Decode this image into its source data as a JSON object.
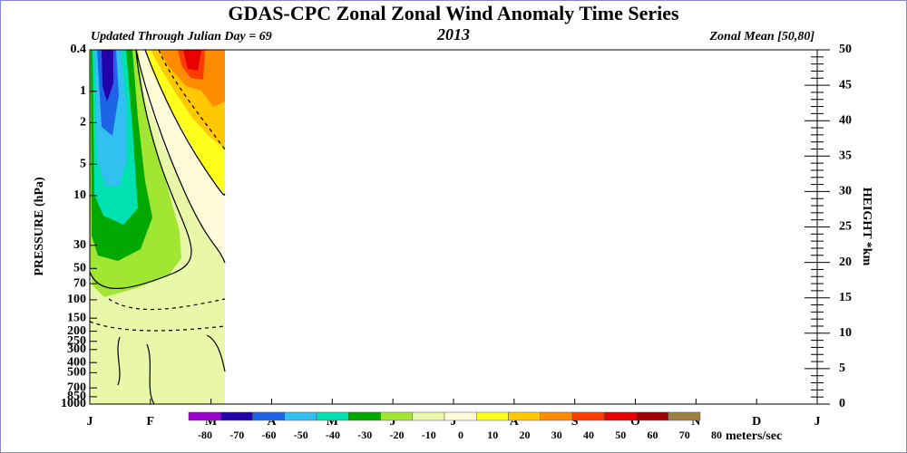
{
  "chart_data": {
    "type": "contour",
    "title": "GDAS-CPC Zonal Zonal Wind Anomaly Time Series",
    "subtitle_left": "Updated Through Julian Day =  69",
    "subtitle_center": "2013",
    "subtitle_right": "Zonal Mean [50,80]",
    "ylabel": "PRESSURE (hPa)",
    "y2label": "HEIGHT *km",
    "categories": [
      "J",
      "F",
      "M",
      "A",
      "M",
      "J",
      "J",
      "A",
      "S",
      "O",
      "N",
      "D",
      "J"
    ],
    "yscale": "log",
    "ylim": [
      1000,
      0.4
    ],
    "yticks": [
      0.4,
      1,
      2,
      5,
      10,
      30,
      50,
      70,
      100,
      150,
      200,
      250,
      300,
      400,
      500,
      700,
      850,
      1000
    ],
    "y2lim": [
      0,
      50
    ],
    "y2ticks": [
      0,
      5,
      10,
      15,
      20,
      25,
      30,
      35,
      40,
      45,
      50
    ],
    "colorbar": {
      "levels": [
        -80,
        -70,
        -60,
        -50,
        -40,
        -30,
        -20,
        -10,
        0,
        10,
        20,
        30,
        40,
        50,
        60,
        70,
        80
      ],
      "colors": [
        "#9900cc",
        "#2200aa",
        "#1e64e6",
        "#32c0f0",
        "#00e0b0",
        "#00a800",
        "#a0e632",
        "#e8f8a8",
        "#fffad8",
        "#ffff1e",
        "#ffc800",
        "#ff8c00",
        "#ff3c00",
        "#e60000",
        "#a00000",
        "#a08040"
      ],
      "unit": "meters/sec"
    }
  }
}
